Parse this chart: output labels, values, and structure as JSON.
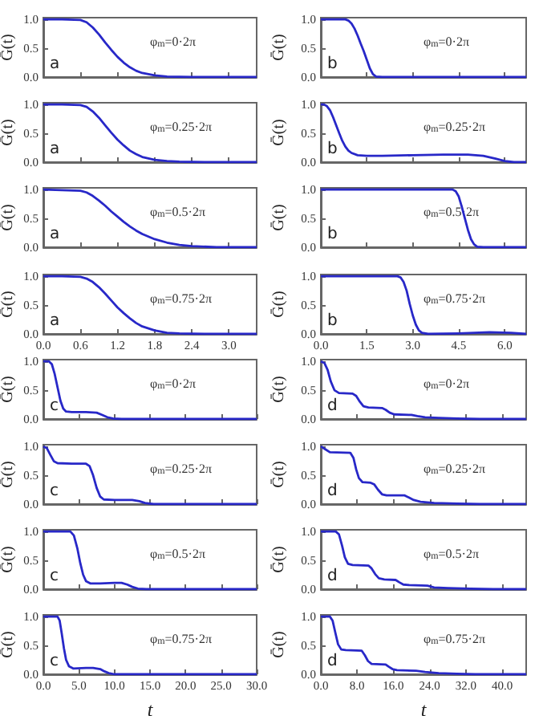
{
  "chart_data": [
    {
      "type": "line",
      "color": "#2828c8",
      "marker": "none",
      "ylabel": "Ḡ(t)",
      "annotations": [
        "a",
        "φ$_{m}$=0·2π"
      ],
      "tick_labels": "y",
      "xlim": [
        0,
        3.45
      ],
      "xticks": [
        {
          "value": 0,
          "label": null
        },
        {
          "value": 0.6,
          "label": null
        },
        {
          "value": 1.2,
          "label": null
        },
        {
          "value": 1.8,
          "label": null
        },
        {
          "value": 2.4,
          "label": null
        },
        {
          "value": 3,
          "label": null
        }
      ],
      "ylim": [
        0,
        1.03
      ],
      "yticks": [
        {
          "value": 0,
          "label": "0.0"
        },
        {
          "value": 0.5,
          "label": "0.5"
        },
        {
          "value": 1,
          "label": "1.0"
        }
      ],
      "x": [
        0,
        0.3,
        0.6,
        0.7,
        0.8,
        0.9,
        1.0,
        1.1,
        1.2,
        1.3,
        1.4,
        1.5,
        1.6,
        1.8,
        2.0,
        2.4,
        3.0,
        3.45
      ],
      "values": [
        1,
        1,
        0.99,
        0.95,
        0.86,
        0.74,
        0.6,
        0.47,
        0.35,
        0.25,
        0.17,
        0.11,
        0.07,
        0.03,
        0.01,
        0,
        0,
        0
      ]
    },
    {
      "type": "line",
      "color": "#2828c8",
      "marker": "none",
      "ylabel": "Ḡ(t)",
      "annotations": [
        "b",
        "φ$_{m}$=0·2π"
      ],
      "tick_labels": "y",
      "xlim": [
        0,
        6.7
      ],
      "xticks": [
        {
          "value": 0,
          "label": null
        },
        {
          "value": 1.5,
          "label": null
        },
        {
          "value": 3,
          "label": null
        },
        {
          "value": 4.5,
          "label": null
        },
        {
          "value": 6,
          "label": null
        }
      ],
      "ylim": [
        0,
        1.03
      ],
      "yticks": [
        {
          "value": 0,
          "label": "0.0"
        },
        {
          "value": 0.5,
          "label": "0.5"
        },
        {
          "value": 1,
          "label": "1.0"
        }
      ],
      "x": [
        0,
        0.8,
        0.9,
        1.0,
        1.1,
        1.2,
        1.3,
        1.4,
        1.5,
        1.6,
        1.7,
        1.8,
        2.0,
        6.7
      ],
      "values": [
        1,
        1,
        0.98,
        0.93,
        0.84,
        0.72,
        0.58,
        0.45,
        0.3,
        0.15,
        0.05,
        0.01,
        0,
        0
      ]
    },
    {
      "type": "line",
      "color": "#2828c8",
      "marker": "none",
      "ylabel": "Ḡ(t)",
      "annotations": [
        "a",
        "φ$_{m}$=0.25·2π"
      ],
      "tick_labels": "y",
      "xlim": [
        0,
        3.45
      ],
      "xticks": [
        {
          "value": 0,
          "label": null
        },
        {
          "value": 0.6,
          "label": null
        },
        {
          "value": 1.2,
          "label": null
        },
        {
          "value": 1.8,
          "label": null
        },
        {
          "value": 2.4,
          "label": null
        },
        {
          "value": 3,
          "label": null
        }
      ],
      "ylim": [
        0,
        1.03
      ],
      "yticks": [
        {
          "value": 0,
          "label": "0.0"
        },
        {
          "value": 0.5,
          "label": "0.5"
        },
        {
          "value": 1,
          "label": "1.0"
        }
      ],
      "x": [
        0,
        0.3,
        0.6,
        0.7,
        0.8,
        0.9,
        1.0,
        1.1,
        1.2,
        1.3,
        1.4,
        1.5,
        1.6,
        1.8,
        2.0,
        2.2,
        2.6,
        3.45
      ],
      "values": [
        1,
        1,
        0.99,
        0.96,
        0.88,
        0.77,
        0.64,
        0.51,
        0.39,
        0.29,
        0.2,
        0.14,
        0.09,
        0.04,
        0.02,
        0.01,
        0,
        0
      ]
    },
    {
      "type": "line",
      "color": "#2828c8",
      "marker": "none",
      "ylabel": "Ḡ(t)",
      "annotations": [
        "b",
        "φ$_{m}$=0.25·2π"
      ],
      "tick_labels": "y",
      "xlim": [
        0,
        6.7
      ],
      "xticks": [
        {
          "value": 0,
          "label": null
        },
        {
          "value": 1.5,
          "label": null
        },
        {
          "value": 3,
          "label": null
        },
        {
          "value": 4.5,
          "label": null
        },
        {
          "value": 6,
          "label": null
        }
      ],
      "ylim": [
        0,
        1.03
      ],
      "yticks": [
        {
          "value": 0,
          "label": "0.0"
        },
        {
          "value": 0.5,
          "label": "0.5"
        },
        {
          "value": 1,
          "label": "1.0"
        }
      ],
      "x": [
        0,
        0.1,
        0.2,
        0.3,
        0.4,
        0.5,
        0.6,
        0.7,
        0.8,
        0.9,
        1.0,
        1.2,
        1.5,
        2.0,
        3.0,
        4.0,
        4.8,
        5.3,
        5.7,
        6.0,
        6.3,
        6.7
      ],
      "values": [
        1,
        1,
        0.97,
        0.9,
        0.78,
        0.64,
        0.5,
        0.37,
        0.27,
        0.2,
        0.16,
        0.12,
        0.11,
        0.11,
        0.12,
        0.13,
        0.13,
        0.11,
        0.06,
        0.02,
        0,
        0
      ]
    },
    {
      "type": "line",
      "color": "#2828c8",
      "marker": "none",
      "ylabel": "Ḡ(t)",
      "annotations": [
        "a",
        "φ$_{m}$=0.5·2π"
      ],
      "tick_labels": "y",
      "xlim": [
        0,
        3.45
      ],
      "xticks": [
        {
          "value": 0,
          "label": null
        },
        {
          "value": 0.6,
          "label": null
        },
        {
          "value": 1.2,
          "label": null
        },
        {
          "value": 1.8,
          "label": null
        },
        {
          "value": 2.4,
          "label": null
        },
        {
          "value": 3,
          "label": null
        }
      ],
      "ylim": [
        0,
        1.03
      ],
      "yticks": [
        {
          "value": 0,
          "label": "0.0"
        },
        {
          "value": 0.5,
          "label": "0.5"
        },
        {
          "value": 1,
          "label": "1.0"
        }
      ],
      "x": [
        0,
        0.3,
        0.6,
        0.7,
        0.8,
        0.9,
        1.0,
        1.1,
        1.2,
        1.3,
        1.4,
        1.5,
        1.6,
        1.8,
        2.0,
        2.2,
        2.4,
        2.8,
        3.45
      ],
      "values": [
        1,
        0.99,
        0.98,
        0.95,
        0.89,
        0.81,
        0.72,
        0.62,
        0.53,
        0.44,
        0.36,
        0.29,
        0.23,
        0.14,
        0.08,
        0.04,
        0.02,
        0,
        0
      ]
    },
    {
      "type": "line",
      "color": "#2828c8",
      "marker": "none",
      "ylabel": "Ḡ(t)",
      "annotations": [
        "b",
        "φ$_{m}$=0.5·2π"
      ],
      "tick_labels": "y",
      "xlim": [
        0,
        6.7
      ],
      "xticks": [
        {
          "value": 0,
          "label": null
        },
        {
          "value": 1.5,
          "label": null
        },
        {
          "value": 3,
          "label": null
        },
        {
          "value": 4.5,
          "label": null
        },
        {
          "value": 6,
          "label": null
        }
      ],
      "ylim": [
        0,
        1.03
      ],
      "yticks": [
        {
          "value": 0,
          "label": "0.0"
        },
        {
          "value": 0.5,
          "label": "0.5"
        },
        {
          "value": 1,
          "label": "1.0"
        }
      ],
      "x": [
        0,
        4.3,
        4.4,
        4.5,
        4.6,
        4.7,
        4.8,
        4.9,
        5.0,
        5.1,
        5.3,
        6.7
      ],
      "values": [
        1,
        1,
        0.97,
        0.88,
        0.7,
        0.5,
        0.3,
        0.14,
        0.05,
        0.01,
        0,
        0
      ]
    },
    {
      "type": "line",
      "color": "#2828c8",
      "marker": "none",
      "ylabel": "Ḡ(t)",
      "annotations": [
        "a",
        "φ$_{m}$=0.75·2π"
      ],
      "xlim": [
        0,
        3.45
      ],
      "xticks": [
        {
          "value": 0,
          "label": "0.0"
        },
        {
          "value": 0.6,
          "label": "0.6"
        },
        {
          "value": 1.2,
          "label": "1.2"
        },
        {
          "value": 1.8,
          "label": "1.8"
        },
        {
          "value": 2.4,
          "label": "2.4"
        },
        {
          "value": 3,
          "label": "3.0"
        }
      ],
      "ylim": [
        0,
        1.03
      ],
      "yticks": [
        {
          "value": 0,
          "label": "0.0"
        },
        {
          "value": 0.5,
          "label": "0.5"
        },
        {
          "value": 1,
          "label": "1.0"
        }
      ],
      "x": [
        0,
        0.3,
        0.6,
        0.7,
        0.8,
        0.9,
        1.0,
        1.1,
        1.2,
        1.3,
        1.4,
        1.5,
        1.6,
        1.8,
        2.0,
        2.2,
        2.6,
        3.45
      ],
      "values": [
        1,
        1,
        0.99,
        0.96,
        0.9,
        0.81,
        0.7,
        0.58,
        0.46,
        0.36,
        0.27,
        0.19,
        0.13,
        0.06,
        0.02,
        0.01,
        0,
        0
      ]
    },
    {
      "type": "line",
      "color": "#2828c8",
      "marker": "none",
      "ylabel": "Ḡ(t)",
      "annotations": [
        "b",
        "φ$_{m}$=0.75·2π"
      ],
      "xlim": [
        0,
        6.7
      ],
      "xticks": [
        {
          "value": 0,
          "label": "0.0"
        },
        {
          "value": 1.5,
          "label": "1.5"
        },
        {
          "value": 3,
          "label": "3.0"
        },
        {
          "value": 4.5,
          "label": "4.5"
        },
        {
          "value": 6,
          "label": "6.0"
        }
      ],
      "ylim": [
        0,
        1.03
      ],
      "yticks": [
        {
          "value": 0,
          "label": "0.0"
        },
        {
          "value": 0.5,
          "label": "0.5"
        },
        {
          "value": 1,
          "label": "1.0"
        }
      ],
      "x": [
        0,
        2.5,
        2.6,
        2.7,
        2.8,
        2.9,
        3.0,
        3.1,
        3.2,
        3.3,
        3.5,
        4.5,
        5.5,
        6.2,
        6.7
      ],
      "values": [
        1,
        1,
        0.98,
        0.9,
        0.75,
        0.52,
        0.32,
        0.16,
        0.06,
        0.02,
        0,
        0.01,
        0.03,
        0.02,
        0
      ]
    },
    {
      "type": "line",
      "color": "#2828c8",
      "marker": "none",
      "ylabel": "Ḡ(t)",
      "annotations": [
        "c",
        "φ$_{m}$=0·2π"
      ],
      "tick_labels": "y",
      "xlim": [
        0,
        30
      ],
      "xticks": [
        {
          "value": 0,
          "label": null
        },
        {
          "value": 5,
          "label": null
        },
        {
          "value": 10,
          "label": null
        },
        {
          "value": 15,
          "label": null
        },
        {
          "value": 20,
          "label": null
        },
        {
          "value": 25,
          "label": null
        },
        {
          "value": 30,
          "label": null
        }
      ],
      "ylim": [
        0,
        1.03
      ],
      "yticks": [
        {
          "value": 0,
          "label": "0.0"
        },
        {
          "value": 0.5,
          "label": "0.5"
        },
        {
          "value": 1,
          "label": "1.0"
        }
      ],
      "x": [
        0,
        0.8,
        1.2,
        1.6,
        2.0,
        2.4,
        2.8,
        3.2,
        4,
        6,
        7.5,
        8.3,
        9,
        9.8,
        11,
        30
      ],
      "values": [
        1,
        1,
        0.95,
        0.78,
        0.55,
        0.32,
        0.18,
        0.13,
        0.12,
        0.12,
        0.11,
        0.07,
        0.03,
        0.01,
        0,
        0
      ]
    },
    {
      "type": "line",
      "color": "#2828c8",
      "marker": "none",
      "ylabel": "Ḡ(t)",
      "annotations": [
        "d",
        "φ$_{m}$=0·2π"
      ],
      "tick_labels": "y",
      "xlim": [
        0,
        45.3
      ],
      "xticks": [
        {
          "value": 0,
          "label": null
        },
        {
          "value": 8,
          "label": null
        },
        {
          "value": 16,
          "label": null
        },
        {
          "value": 24,
          "label": null
        },
        {
          "value": 32,
          "label": null
        },
        {
          "value": 40,
          "label": null
        }
      ],
      "ylim": [
        0,
        1.03
      ],
      "yticks": [
        {
          "value": 0,
          "label": "0.0"
        },
        {
          "value": 0.5,
          "label": "0.5"
        },
        {
          "value": 1,
          "label": "1.0"
        }
      ],
      "x": [
        0,
        0.8,
        1.5,
        2.2,
        3.0,
        4.0,
        7.0,
        7.8,
        8.6,
        9.4,
        10.5,
        13.5,
        14.3,
        15.2,
        16.2,
        20,
        21.3,
        23,
        26,
        30,
        35,
        45.3
      ],
      "values": [
        1,
        0.97,
        0.85,
        0.65,
        0.5,
        0.45,
        0.44,
        0.4,
        0.3,
        0.22,
        0.2,
        0.19,
        0.16,
        0.11,
        0.08,
        0.07,
        0.05,
        0.03,
        0.02,
        0.01,
        0,
        0
      ]
    },
    {
      "type": "line",
      "color": "#2828c8",
      "marker": "none",
      "ylabel": "Ḡ(t)",
      "annotations": [
        "c",
        "φ$_{m}$=0.25·2π"
      ],
      "tick_labels": "y",
      "xlim": [
        0,
        30
      ],
      "xticks": [
        {
          "value": 0,
          "label": null
        },
        {
          "value": 5,
          "label": null
        },
        {
          "value": 10,
          "label": null
        },
        {
          "value": 15,
          "label": null
        },
        {
          "value": 20,
          "label": null
        },
        {
          "value": 25,
          "label": null
        },
        {
          "value": 30,
          "label": null
        }
      ],
      "ylim": [
        0,
        1.03
      ],
      "yticks": [
        {
          "value": 0,
          "label": "0.0"
        },
        {
          "value": 0.5,
          "label": "0.5"
        },
        {
          "value": 1,
          "label": "1.0"
        }
      ],
      "x": [
        0,
        0.5,
        1.0,
        1.5,
        2.0,
        4,
        6.0,
        6.5,
        7.0,
        7.5,
        8.0,
        8.5,
        10,
        12.5,
        13.5,
        14.3,
        15.5,
        30
      ],
      "values": [
        1,
        0.97,
        0.85,
        0.74,
        0.71,
        0.7,
        0.7,
        0.66,
        0.5,
        0.28,
        0.13,
        0.08,
        0.07,
        0.07,
        0.05,
        0.02,
        0,
        0
      ]
    },
    {
      "type": "line",
      "color": "#2828c8",
      "marker": "none",
      "ylabel": "Ḡ(t)",
      "annotations": [
        "d",
        "φ$_{m}$=0.25·2π"
      ],
      "tick_labels": "y",
      "xlim": [
        0,
        45.3
      ],
      "xticks": [
        {
          "value": 0,
          "label": null
        },
        {
          "value": 8,
          "label": null
        },
        {
          "value": 16,
          "label": null
        },
        {
          "value": 24,
          "label": null
        },
        {
          "value": 32,
          "label": null
        },
        {
          "value": 40,
          "label": null
        }
      ],
      "ylim": [
        0,
        1.03
      ],
      "yticks": [
        {
          "value": 0,
          "label": "0.0"
        },
        {
          "value": 0.5,
          "label": "0.5"
        },
        {
          "value": 1,
          "label": "1.0"
        }
      ],
      "x": [
        0,
        1,
        2,
        6.5,
        7.2,
        7.8,
        8.4,
        9.2,
        11,
        11.8,
        12.6,
        13.5,
        14.5,
        18.5,
        19.5,
        20.5,
        22,
        25,
        30,
        35,
        45.3
      ],
      "values": [
        1,
        0.95,
        0.9,
        0.89,
        0.8,
        0.6,
        0.45,
        0.38,
        0.37,
        0.34,
        0.25,
        0.17,
        0.15,
        0.15,
        0.11,
        0.07,
        0.04,
        0.02,
        0.01,
        0,
        0
      ]
    },
    {
      "type": "line",
      "color": "#2828c8",
      "marker": "none",
      "ylabel": "Ḡ(t)",
      "annotations": [
        "c",
        "φ$_{m}$=0.5·2π"
      ],
      "tick_labels": "y",
      "xlim": [
        0,
        30
      ],
      "xticks": [
        {
          "value": 0,
          "label": null
        },
        {
          "value": 5,
          "label": null
        },
        {
          "value": 10,
          "label": null
        },
        {
          "value": 15,
          "label": null
        },
        {
          "value": 20,
          "label": null
        },
        {
          "value": 25,
          "label": null
        },
        {
          "value": 30,
          "label": null
        }
      ],
      "ylim": [
        0,
        1.03
      ],
      "yticks": [
        {
          "value": 0,
          "label": "0.0"
        },
        {
          "value": 0.5,
          "label": "0.5"
        },
        {
          "value": 1,
          "label": "1.0"
        }
      ],
      "x": [
        0,
        3.8,
        4.3,
        4.8,
        5.2,
        5.6,
        6.0,
        6.6,
        8,
        10,
        11,
        11.8,
        12.5,
        13.3,
        14.5,
        30
      ],
      "values": [
        1,
        1,
        0.93,
        0.7,
        0.45,
        0.25,
        0.14,
        0.1,
        0.1,
        0.11,
        0.11,
        0.08,
        0.04,
        0.01,
        0,
        0
      ]
    },
    {
      "type": "line",
      "color": "#2828c8",
      "marker": "none",
      "ylabel": "Ḡ(t)",
      "annotations": [
        "d",
        "φ$_{m}$=0.5·2π"
      ],
      "tick_labels": "y",
      "xlim": [
        0,
        45.3
      ],
      "xticks": [
        {
          "value": 0,
          "label": null
        },
        {
          "value": 8,
          "label": null
        },
        {
          "value": 16,
          "label": null
        },
        {
          "value": 24,
          "label": null
        },
        {
          "value": 32,
          "label": null
        },
        {
          "value": 40,
          "label": null
        }
      ],
      "ylim": [
        0,
        1.03
      ],
      "yticks": [
        {
          "value": 0,
          "label": "0.0"
        },
        {
          "value": 0.5,
          "label": "0.5"
        },
        {
          "value": 1,
          "label": "1.0"
        }
      ],
      "x": [
        0,
        3.3,
        4.0,
        4.7,
        5.3,
        6.0,
        7,
        10.5,
        11.2,
        12.0,
        12.8,
        14,
        16.5,
        17.3,
        18.2,
        19.5,
        23.5,
        25,
        28,
        33,
        38,
        45.3
      ],
      "values": [
        1,
        1,
        0.95,
        0.75,
        0.55,
        0.44,
        0.42,
        0.41,
        0.36,
        0.26,
        0.19,
        0.17,
        0.16,
        0.12,
        0.08,
        0.07,
        0.06,
        0.03,
        0.02,
        0.01,
        0,
        0
      ]
    },
    {
      "type": "line",
      "color": "#2828c8",
      "marker": "none",
      "ylabel": "Ḡ(t)",
      "xlabel": "t",
      "annotations": [
        "c",
        "φ$_{m}$=0.75·2π"
      ],
      "xlim": [
        0,
        30
      ],
      "xticks": [
        {
          "value": 0,
          "label": "0.0"
        },
        {
          "value": 5,
          "label": "5.0"
        },
        {
          "value": 10,
          "label": "10.0"
        },
        {
          "value": 15,
          "label": "15.0"
        },
        {
          "value": 20,
          "label": "20.0"
        },
        {
          "value": 25,
          "label": "25.0"
        },
        {
          "value": 30,
          "label": "30.0"
        }
      ],
      "ylim": [
        0,
        1.03
      ],
      "yticks": [
        {
          "value": 0,
          "label": "0.0"
        },
        {
          "value": 0.5,
          "label": "0.5"
        },
        {
          "value": 1,
          "label": "1.0"
        }
      ],
      "x": [
        0,
        2.0,
        2.3,
        2.6,
        2.9,
        3.2,
        3.6,
        4.2,
        6,
        7,
        8,
        8.6,
        9.2,
        10,
        30
      ],
      "values": [
        1,
        1,
        0.93,
        0.7,
        0.45,
        0.25,
        0.14,
        0.1,
        0.11,
        0.11,
        0.09,
        0.05,
        0.02,
        0,
        0
      ]
    },
    {
      "type": "line",
      "color": "#2828c8",
      "marker": "none",
      "ylabel": "Ḡ(t)",
      "xlabel": "t",
      "annotations": [
        "d",
        "φ$_{m}$=0.75·2π"
      ],
      "xlim": [
        0,
        45.3
      ],
      "xticks": [
        {
          "value": 0,
          "label": "0.0"
        },
        {
          "value": 8,
          "label": "8.0"
        },
        {
          "value": 16,
          "label": "16.0"
        },
        {
          "value": 24,
          "label": "24.0"
        },
        {
          "value": 32,
          "label": "32.0"
        },
        {
          "value": 40,
          "label": "40.0"
        }
      ],
      "ylim": [
        0,
        1.03
      ],
      "yticks": [
        {
          "value": 0,
          "label": "0.0"
        },
        {
          "value": 0.5,
          "label": "0.5"
        },
        {
          "value": 1,
          "label": "1.0"
        }
      ],
      "x": [
        0,
        2.0,
        2.6,
        3.2,
        3.8,
        4.5,
        5.5,
        9.0,
        9.7,
        10.4,
        11.2,
        14.3,
        15.0,
        15.8,
        16.8,
        21,
        23,
        26,
        30,
        34,
        45.3
      ],
      "values": [
        1,
        1,
        0.93,
        0.72,
        0.52,
        0.43,
        0.42,
        0.41,
        0.33,
        0.23,
        0.18,
        0.17,
        0.13,
        0.09,
        0.07,
        0.06,
        0.04,
        0.02,
        0.01,
        0,
        0
      ]
    }
  ]
}
